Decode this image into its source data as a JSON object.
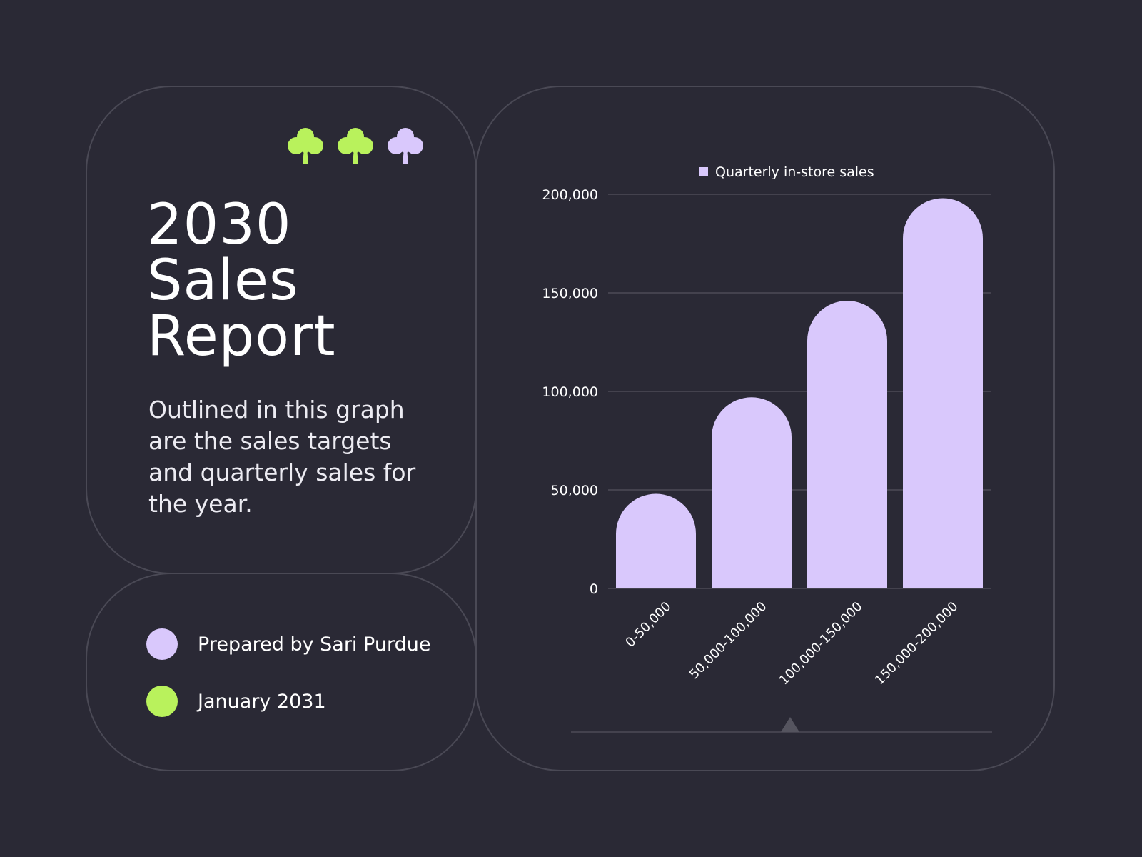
{
  "header": {
    "title_lines": [
      "2030",
      "Sales",
      "Report"
    ],
    "description": "Outlined in this graph are the sales targets and quarterly sales for the year."
  },
  "info": {
    "prepared_by": "Prepared by Sari Purdue",
    "date": "January 2031"
  },
  "colors": {
    "background": "#2a2935",
    "lavender": "#d9c8fc",
    "lime": "#b9f25c",
    "card_border": "#4a4955",
    "gridline": "#4c4b57"
  },
  "icons": [
    "clover-icon",
    "clover-icon",
    "clover-icon"
  ],
  "chart_data": {
    "type": "bar",
    "title": "",
    "xlabel": "",
    "ylabel": "",
    "categories": [
      "0-50,000",
      "50,000-100,000",
      "100,000-150,000",
      "150,000-200,000"
    ],
    "series": [
      {
        "name": "Quarterly in-store sales",
        "values": [
          48000,
          97000,
          146000,
          198000
        ],
        "color": "#d9c8fc"
      }
    ],
    "ylim": [
      0,
      200000
    ],
    "yticks": [
      0,
      50000,
      100000,
      150000,
      200000
    ],
    "ytick_labels": [
      "0",
      "50,000",
      "100,000",
      "150,000",
      "200,000"
    ],
    "grid": true,
    "legend": "top-center"
  }
}
